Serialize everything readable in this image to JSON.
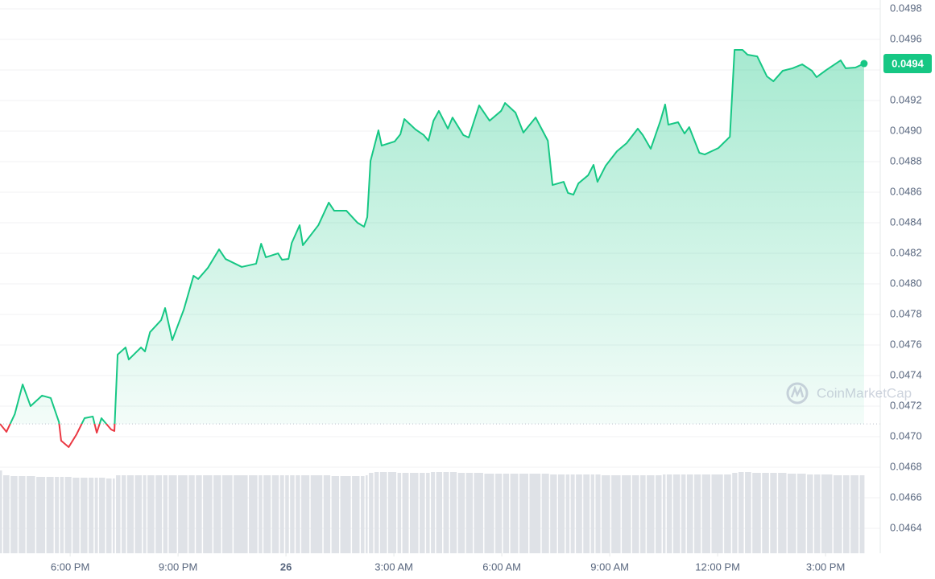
{
  "chart_data": {
    "type": "line",
    "watermark": "CoinMarketCap",
    "color": "#16c784",
    "down_color": "#ea3943",
    "grid": true,
    "last_value_label": "0.0494",
    "xlim": [
      16.05,
      40.52
    ],
    "xticks": [
      {
        "value": 18,
        "label": "6:00 PM"
      },
      {
        "value": 21,
        "label": "9:00 PM"
      },
      {
        "value": 24,
        "label": "26"
      },
      {
        "value": 27,
        "label": "3:00 AM"
      },
      {
        "value": 30,
        "label": "6:00 AM"
      },
      {
        "value": 33,
        "label": "9:00 AM"
      },
      {
        "value": 36,
        "label": "12:00 PM"
      },
      {
        "value": 39,
        "label": "3:00 PM"
      }
    ],
    "ylim": [
      0.046237,
      0.049858
    ],
    "yticks": [
      0.0464,
      0.0466,
      0.0468,
      {
        "value": 0.047,
        "label": "0.0470"
      },
      0.0472,
      0.0474,
      0.0476,
      0.0478,
      {
        "value": 0.048,
        "label": "0.0480"
      },
      0.0482,
      0.0484,
      0.0486,
      0.0488,
      {
        "value": 0.049,
        "label": "0.0490"
      },
      0.0492,
      0.0494,
      0.0496,
      0.0498
    ],
    "x": [
      16.05,
      16.23,
      16.46,
      16.68,
      16.9,
      17.22,
      17.46,
      17.69,
      17.75,
      17.96,
      18.18,
      18.4,
      18.63,
      18.74,
      18.87,
      19.14,
      19.23,
      19.32,
      19.54,
      19.63,
      19.97,
      20.08,
      20.22,
      20.53,
      20.64,
      20.84,
      21.16,
      21.43,
      21.56,
      21.83,
      22.14,
      22.32,
      22.77,
      23.17,
      23.31,
      23.44,
      23.78,
      23.89,
      24.07,
      24.16,
      24.38,
      24.47,
      24.9,
      25.19,
      25.34,
      25.68,
      25.99,
      26.17,
      26.26,
      26.35,
      26.57,
      26.66,
      27.02,
      27.18,
      27.29,
      27.6,
      27.83,
      27.96,
      28.1,
      28.25,
      28.5,
      28.63,
      28.93,
      29.08,
      29.37,
      29.66,
      29.98,
      30.09,
      30.38,
      30.6,
      30.94,
      31.28,
      31.41,
      31.72,
      31.84,
      31.99,
      32.13,
      32.4,
      32.55,
      32.66,
      32.89,
      33.2,
      33.47,
      33.78,
      33.92,
      34.14,
      34.41,
      34.54,
      34.63,
      34.9,
      35.08,
      35.21,
      35.49,
      35.64,
      36.02,
      36.34,
      36.47,
      36.69,
      36.83,
      37.1,
      37.37,
      37.55,
      37.81,
      38.08,
      38.35,
      38.62,
      38.75,
      39.02,
      39.42,
      39.56,
      39.83,
      40.07
    ],
    "values": [
      0.047084,
      0.047032,
      0.047147,
      0.047342,
      0.0472,
      0.047269,
      0.047253,
      0.047095,
      0.046974,
      0.046932,
      0.047016,
      0.047121,
      0.047132,
      0.047026,
      0.047121,
      0.047047,
      0.047037,
      0.047537,
      0.047584,
      0.047505,
      0.047584,
      0.047558,
      0.047684,
      0.047763,
      0.047842,
      0.047632,
      0.047832,
      0.048053,
      0.048032,
      0.048105,
      0.048226,
      0.048163,
      0.048111,
      0.048132,
      0.048263,
      0.048174,
      0.0482,
      0.048158,
      0.048163,
      0.048268,
      0.048384,
      0.048253,
      0.048384,
      0.048532,
      0.048479,
      0.048479,
      0.0484,
      0.048374,
      0.048437,
      0.048805,
      0.049005,
      0.048905,
      0.048932,
      0.048979,
      0.049079,
      0.049011,
      0.048974,
      0.048937,
      0.049068,
      0.049132,
      0.049016,
      0.049089,
      0.048974,
      0.048958,
      0.049168,
      0.049068,
      0.049132,
      0.049184,
      0.049121,
      0.04899,
      0.049089,
      0.048937,
      0.048647,
      0.048668,
      0.048595,
      0.048584,
      0.048658,
      0.048711,
      0.048779,
      0.048668,
      0.048774,
      0.048868,
      0.048921,
      0.049016,
      0.048974,
      0.048884,
      0.049068,
      0.049174,
      0.049042,
      0.049058,
      0.048984,
      0.049026,
      0.048858,
      0.048847,
      0.048889,
      0.048963,
      0.049532,
      0.049532,
      0.0495,
      0.049489,
      0.049358,
      0.049326,
      0.049395,
      0.049411,
      0.049437,
      0.049395,
      0.049353,
      0.0494,
      0.049463,
      0.049411,
      0.049416,
      0.049442
    ],
    "volume": [
      103,
      97,
      96,
      96,
      96,
      95,
      95,
      95,
      95,
      95,
      94,
      94,
      94,
      94,
      94,
      93,
      93,
      97,
      97,
      97,
      97,
      97,
      97,
      97,
      97,
      97,
      97,
      97,
      97,
      97,
      97,
      97,
      97,
      97,
      97,
      97,
      97,
      97,
      97,
      97,
      97,
      97,
      97,
      97,
      96,
      96,
      96,
      96,
      97,
      100,
      101,
      101,
      101,
      100,
      100,
      100,
      100,
      100,
      101,
      101,
      101,
      101,
      100,
      100,
      100,
      99,
      99,
      99,
      99,
      99,
      99,
      99,
      98,
      98,
      98,
      98,
      98,
      98,
      98,
      98,
      97,
      97,
      97,
      97,
      97,
      97,
      97,
      98,
      98,
      98,
      98,
      98,
      98,
      98,
      98,
      98,
      100,
      101,
      101,
      100,
      100,
      100,
      100,
      99,
      99,
      98,
      98,
      98,
      97,
      97,
      97,
      97
    ]
  }
}
